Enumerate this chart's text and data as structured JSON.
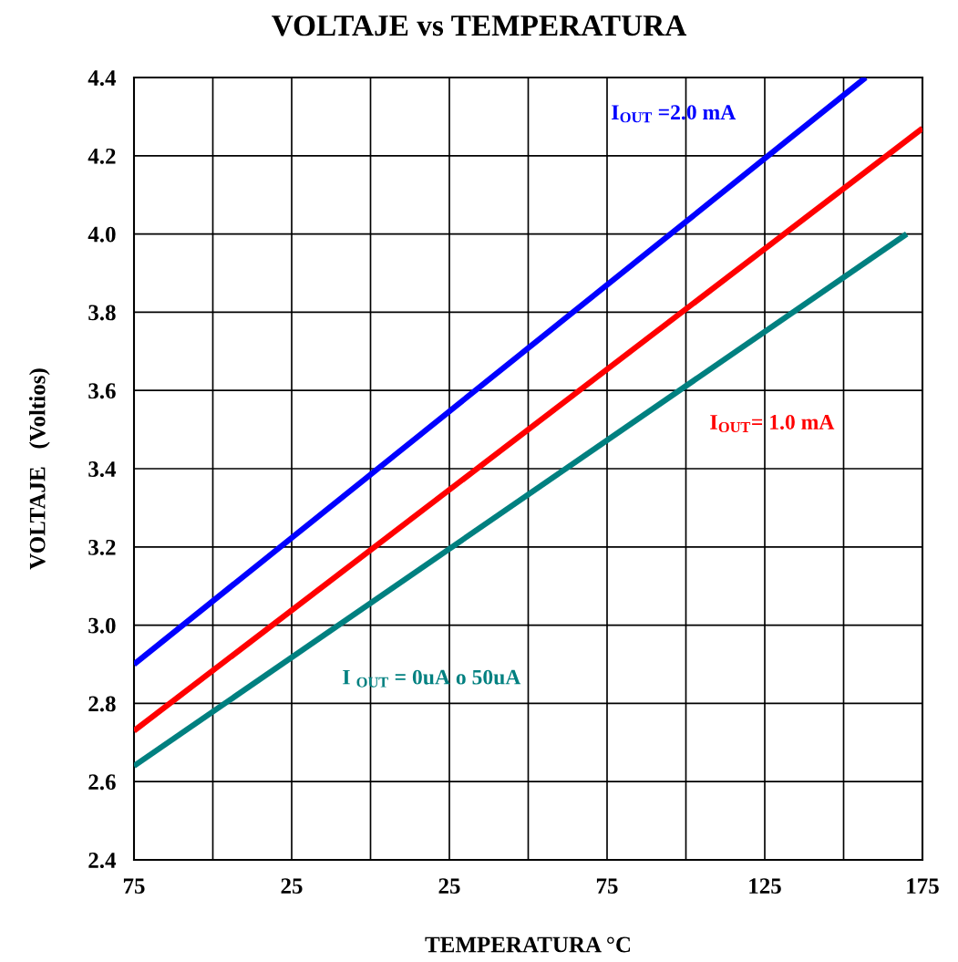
{
  "chart_data": {
    "type": "line",
    "title": "VOLTAJE vs TEMPERATURA",
    "xlabel": "TEMPERATURA °C",
    "ylabel": "VOLTAJE   (Voltios)",
    "series": [
      {
        "name": "I$_{OUT}$ =2.0 mA",
        "color": "#0000ff",
        "x": [
          -75,
          157
        ],
        "values": [
          2.9,
          4.4
        ]
      },
      {
        "name": "I$_{OUT}$= 1.0 mA",
        "color": "#ff0000",
        "x": [
          -75,
          175
        ],
        "values": [
          2.73,
          4.27
        ]
      },
      {
        "name": "I $_{OUT}$ = 0uA o 50uA",
        "color": "#008080",
        "x": [
          -75,
          170
        ],
        "values": [
          2.64,
          4.0
        ]
      }
    ],
    "xlim": [
      -75,
      175
    ],
    "xticks": [
      {
        "value": -75,
        "label": "75"
      },
      {
        "value": -50,
        "label": null
      },
      {
        "value": -25,
        "label": "25"
      },
      {
        "value": 0,
        "label": null
      },
      25,
      {
        "value": 50,
        "label": null
      },
      75,
      {
        "value": 100,
        "label": null
      },
      125,
      {
        "value": 150,
        "label": null
      },
      175
    ],
    "ylim": [
      2.4,
      4.4
    ],
    "yticks": [
      {
        "value": 2.4,
        "label": "2.4"
      },
      {
        "value": 2.6,
        "label": "2.6"
      },
      {
        "value": 2.8,
        "label": "2.8"
      },
      {
        "value": 3.0,
        "label": "3.0"
      },
      {
        "value": 3.2,
        "label": "3.2"
      },
      {
        "value": 3.4,
        "label": "3.4"
      },
      {
        "value": 3.6,
        "label": "3.6"
      },
      {
        "value": 3.8,
        "label": "3.8"
      },
      {
        "value": 4.0,
        "label": "4.0"
      },
      {
        "value": 4.2,
        "label": "4.2"
      },
      {
        "value": 4.4,
        "label": "4.4"
      }
    ],
    "grid": true,
    "legend": false,
    "marker": "none",
    "line_style": "solid"
  }
}
